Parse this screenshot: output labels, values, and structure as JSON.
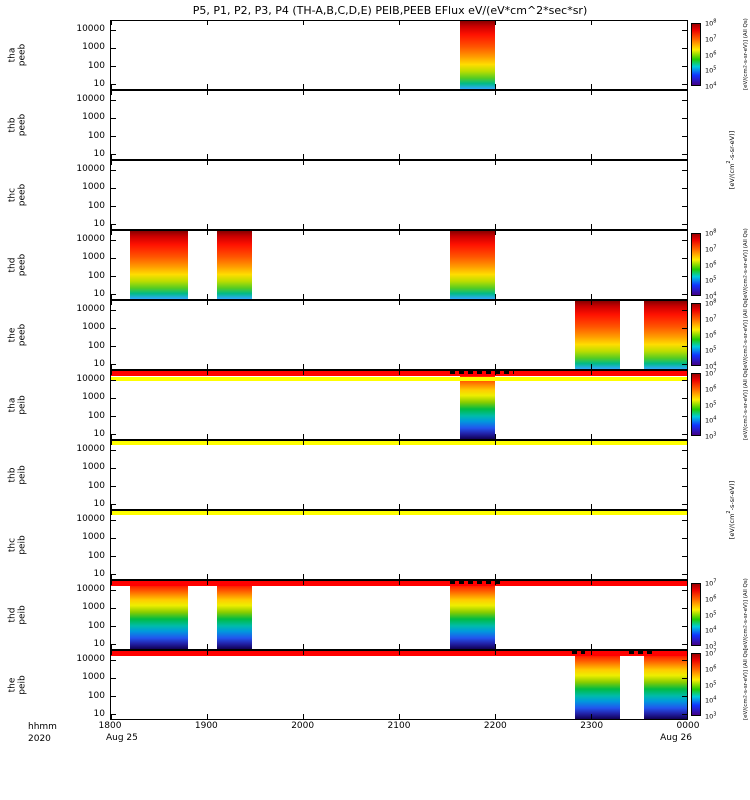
{
  "title": "P5, P1, P2, P3, P4 (TH-A,B,C,D,E) PEIB,PEEB EFlux eV/(eV*cm^2*sec*sr)",
  "x_axis": {
    "tick_labels": [
      "1800",
      "1900",
      "2000",
      "2100",
      "2200",
      "2300",
      "0000"
    ],
    "axis_label": "hhmm",
    "year": "2020",
    "date_start": "Aug 25",
    "date_end": "Aug 26"
  },
  "y_axis": {
    "tick_labels": [
      "10000",
      "1000",
      "100",
      "10"
    ],
    "tick_log_values": [
      4,
      3,
      2,
      1
    ],
    "log_top": 4.48,
    "log_bottom": 0.7
  },
  "colorbar_unit": "[eV/(cm^2-s-sr-eV)]",
  "colorbar_qualifier": "(All Qs)",
  "chart_data": {
    "type": "heatmap",
    "title": "P5, P1, P2, P3, P4 (TH-A,B,C,D,E) PEIB,PEEB EFlux eV/(eV*cm^2*sec*sr)",
    "time_start": "1800 Aug 25 2020",
    "time_end": "0000 Aug 26 2020",
    "minutes_total": 360,
    "energy_range_ev": [
      5,
      30000
    ],
    "grid": false,
    "panels": [
      {
        "name": "tha peeb",
        "label": [
          "tha",
          "peeb"
        ],
        "species": "electron",
        "colorbar": true,
        "cb_ticks": [
          "10^8",
          "10^7",
          "10^6",
          "10^5",
          "10^4"
        ],
        "bursts": [
          {
            "start_min": 218,
            "end_min": 240,
            "start": "2138",
            "end": "2200",
            "intensity": "high, peak flux mid energies"
          }
        ],
        "top_bands": [],
        "dashes": []
      },
      {
        "name": "thb peeb",
        "label": [
          "thb",
          "peeb"
        ],
        "species": "electron",
        "colorbar": false,
        "cb_ticks": [],
        "bursts": [],
        "top_bands": [],
        "dashes": []
      },
      {
        "name": "thc peeb",
        "label": [
          "thc",
          "peeb"
        ],
        "species": "electron",
        "colorbar": false,
        "cb_ticks": [],
        "bursts": [],
        "top_bands": [],
        "dashes": []
      },
      {
        "name": "thd peeb",
        "label": [
          "thd",
          "peeb"
        ],
        "species": "electron",
        "colorbar": true,
        "cb_ticks": [
          "10^8",
          "10^7",
          "10^6",
          "10^5",
          "10^4"
        ],
        "bursts": [
          {
            "start_min": 12,
            "end_min": 48,
            "start": "1812",
            "end": "1848",
            "intensity": "high"
          },
          {
            "start_min": 66,
            "end_min": 88,
            "start": "1906",
            "end": "1928",
            "intensity": "high"
          },
          {
            "start_min": 212,
            "end_min": 240,
            "start": "2132",
            "end": "2200",
            "intensity": "high"
          }
        ],
        "top_bands": [],
        "dashes": []
      },
      {
        "name": "the peeb",
        "label": [
          "the",
          "peeb"
        ],
        "species": "electron",
        "colorbar": true,
        "cb_ticks": [
          "10^8",
          "10^7",
          "10^6",
          "10^5",
          "10^4"
        ],
        "bursts": [
          {
            "start_min": 290,
            "end_min": 318,
            "start": "2250",
            "end": "2318",
            "intensity": "high"
          },
          {
            "start_min": 333,
            "end_min": 360,
            "start": "2333",
            "end": "0000",
            "intensity": "high"
          }
        ],
        "top_bands": [],
        "dashes": []
      },
      {
        "name": "tha peib",
        "label": [
          "tha",
          "peib"
        ],
        "species": "ion",
        "colorbar": true,
        "cb_ticks": [
          "10^7",
          "10^6",
          "10^5",
          "10^4",
          "10^3"
        ],
        "bursts": [
          {
            "start_min": 218,
            "end_min": 240,
            "start": "2138",
            "end": "2200",
            "intensity": "high at top energies, weak at low"
          }
        ],
        "top_bands": [
          {
            "color": "#ff0000",
            "y": 0,
            "h": 5
          },
          {
            "color": "#ffff00",
            "y": 6,
            "h": 4
          }
        ],
        "dashes": [
          {
            "start_min": 212,
            "end_min": 252
          }
        ]
      },
      {
        "name": "thb peib",
        "label": [
          "thb",
          "peib"
        ],
        "species": "ion",
        "colorbar": false,
        "cb_ticks": [],
        "bursts": [],
        "top_bands": [
          {
            "color": "#ffff00",
            "y": 0,
            "h": 4
          }
        ],
        "dashes": []
      },
      {
        "name": "thc peib",
        "label": [
          "thc",
          "peib"
        ],
        "species": "ion",
        "colorbar": false,
        "cb_ticks": [],
        "bursts": [],
        "top_bands": [
          {
            "color": "#ffff00",
            "y": 0,
            "h": 4
          }
        ],
        "dashes": []
      },
      {
        "name": "thd peib",
        "label": [
          "thd",
          "peib"
        ],
        "species": "ion",
        "colorbar": true,
        "cb_ticks": [
          "10^7",
          "10^6",
          "10^5",
          "10^4",
          "10^3"
        ],
        "bursts": [
          {
            "start_min": 12,
            "end_min": 48,
            "start": "1812",
            "end": "1848",
            "intensity": "high"
          },
          {
            "start_min": 66,
            "end_min": 88,
            "start": "1906",
            "end": "1928",
            "intensity": "high"
          },
          {
            "start_min": 212,
            "end_min": 240,
            "start": "2132",
            "end": "2200",
            "intensity": "high"
          }
        ],
        "top_bands": [
          {
            "color": "#ff0000",
            "y": 0,
            "h": 5
          }
        ],
        "dashes": [
          {
            "start_min": 212,
            "end_min": 244
          }
        ]
      },
      {
        "name": "the peib",
        "label": [
          "the",
          "peib"
        ],
        "species": "ion",
        "colorbar": true,
        "cb_ticks": [
          "10^7",
          "10^6",
          "10^5",
          "10^4",
          "10^3"
        ],
        "bursts": [
          {
            "start_min": 290,
            "end_min": 318,
            "start": "2250",
            "end": "2318",
            "intensity": "high"
          },
          {
            "start_min": 333,
            "end_min": 360,
            "start": "2333",
            "end": "0000",
            "intensity": "high"
          }
        ],
        "top_bands": [
          {
            "color": "#ff0000",
            "y": 0,
            "h": 5
          }
        ],
        "dashes": [
          {
            "start_min": 288,
            "end_min": 296
          },
          {
            "start_min": 324,
            "end_min": 338
          }
        ]
      }
    ],
    "empty_unit_label_spans": [
      [
        1,
        2
      ],
      [
        6,
        7
      ]
    ],
    "gradients": {
      "electron": [
        "#880000 0%",
        "#cc0000 8%",
        "#ff1100 20%",
        "#ff5500 38%",
        "#ff9900 52%",
        "#ffdd00 64%",
        "#bbdd00 74%",
        "#55cc22 84%",
        "#00bb88 92%",
        "#33aaff 100%"
      ],
      "ion": [
        "#bb0000 0%",
        "#ff2200 8%",
        "#ff7700 18%",
        "#ffcc00 28%",
        "#eeee00 36%",
        "#88cc00 46%",
        "#00bb44 56%",
        "#00bbaa 66%",
        "#0099dd 74%",
        "#2255ee 84%",
        "#2222aa 92%",
        "#110055 100%"
      ]
    },
    "colorbar_gradient": [
      "#990000 0%",
      "#ee0000 10%",
      "#ff6600 25%",
      "#ffee00 42%",
      "#22cc00 58%",
      "#00ccdd 70%",
      "#1133ff 84%",
      "#440088 100%"
    ]
  }
}
